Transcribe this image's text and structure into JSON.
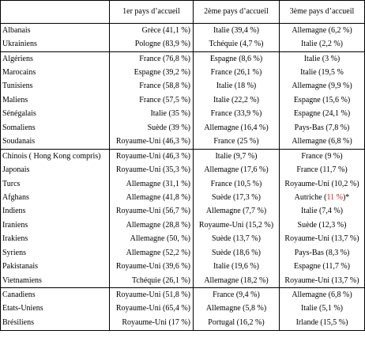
{
  "headers": [
    "",
    "1er pays d’accueil",
    "2ème pays d’accueil",
    "3ème pays d’accueil"
  ],
  "groups": [
    [
      [
        "Albanais",
        "Grèce (41,1 %)",
        "Italie (39,4 %)",
        "Allemagne (6,2 %)"
      ],
      [
        "Ukrainiens",
        "Pologne (83,9 %)",
        "Tchéquie (4,7 %)",
        "Italie (2,2 %)"
      ]
    ],
    [
      [
        "Algériens",
        "France (76,8 %)",
        "Espagne (8,6 %)",
        "Italie (3 %)"
      ],
      [
        "Marocains",
        "Espagne (39,2 %)",
        "France (26,1 %)",
        "Italie (19,5 %"
      ],
      [
        "Tunisiens",
        "France (58,8 %)",
        "Italie (18 %)",
        "Allemagne (9,9 %)"
      ],
      [
        "Maliens",
        "France (57,5 %)",
        "Italie (22,2 %)",
        "Espagne (15,6 %)"
      ],
      [
        "Sénégalais",
        "Italie (35 %)",
        "France (33,9 %)",
        "Espagne (24,1 %)"
      ],
      [
        "Somaliens",
        "Suède (39 %)",
        "Allemagne (16,4 %)",
        "Pays-Bas (7,8 %)"
      ],
      [
        "Soudanais",
        "Royaume-Uni (46,3 %)",
        "France (25 %)",
        "Allemagne (6,8 %)"
      ]
    ],
    [
      [
        "Chinois ( Hong Kong compris)",
        "Royaume-Uni (46,3 %)",
        "Italie (9,7 %)",
        "France (9 %)"
      ],
      [
        "Japonais",
        "Royaume-Uni (35,3 %)",
        "Allemagne (17,6 %)",
        "France (11,7 %)"
      ],
      [
        "Turcs",
        "Allemagne (31,1 %)",
        "France (10,5 %)",
        "Royaume-Uni (10,2 %)"
      ],
      [
        "Afghans",
        "Allemagne (41,8 %)",
        "Suède (17,3 %)",
        "Autriche (11 %)*"
      ],
      [
        "Indiens",
        "Royaume-Uni (56,7 %)",
        "Allemagne (7,7 %)",
        "Italie (7,4 %)"
      ],
      [
        "Iraniens",
        "Allemagne (28,8 %)",
        "Royaume-Uni (15,2 %)",
        "Suède (12,3 %)"
      ],
      [
        "Irakiens",
        "Allemagne (50, %)",
        "Suède (13,7 %)",
        "Royaume-Uni (13,7 %)"
      ],
      [
        "Syriens",
        "Allemagne (52,2 %)",
        "Suède (18,6 %)",
        "Pays-Bas (8,3 %)"
      ],
      [
        "Pakistanais",
        "Royaume-Uni (39,6 %)",
        "Italie (19,6 %)",
        "Espagne (11,7 %)"
      ],
      [
        "Vietnamiens",
        "Tchéquie (26,1 %)",
        "Allemagne (18,2 %)",
        "Royaume-Uni (13,7 %)"
      ]
    ],
    [
      [
        "Canadiens",
        "Royaume-Uni (51,8 %)",
        "France (9,4 %)",
        "Allemagne (6,8 %)"
      ],
      [
        "Etats-Uniens",
        "Royaume-Uni (65,4 %)",
        "Allemagne (5,8 %)",
        "Italie (5,1 %)"
      ],
      [
        "Brésiliens",
        "Royaume-Uni (17 %)",
        "Portugal (16,2 %)",
        "Irlande (15,5 %)"
      ]
    ]
  ],
  "highlight": {
    "text": "11 %",
    "color": "#cc1e1e"
  }
}
